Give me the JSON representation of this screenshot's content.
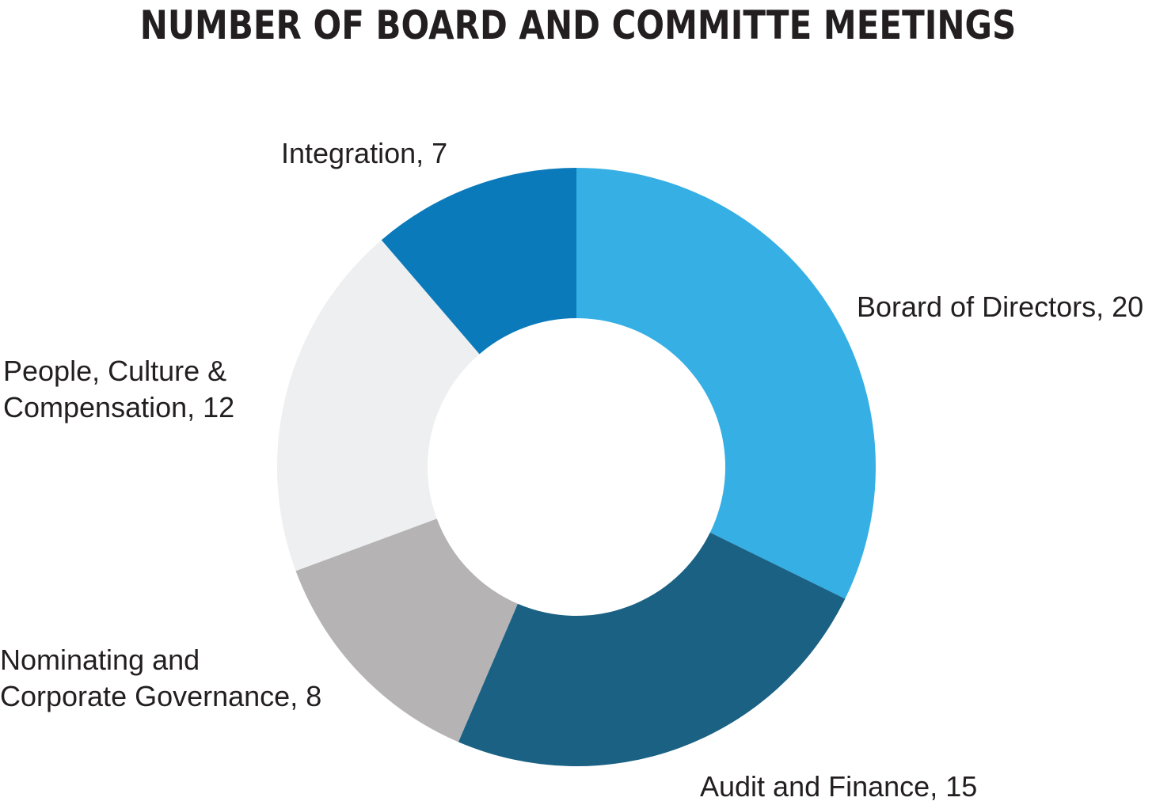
{
  "chart_data": {
    "type": "pie",
    "variant": "donut",
    "title": "NUMBER OF BOARD AND COMMITTE MEETINGS",
    "slices": [
      {
        "label": "Borard of Directors",
        "value": 20,
        "color": "#35afe4",
        "lines": [
          "Borard of Directors, 20"
        ]
      },
      {
        "label": "Audit and Finance",
        "value": 15,
        "color": "#1a6184",
        "lines": [
          "Audit and Finance, 15"
        ]
      },
      {
        "label": "Nominating and Corporate Governance",
        "value": 8,
        "color": "#b6b3b4",
        "lines": [
          "Nominating and",
          "Corporate Governance, 8"
        ]
      },
      {
        "label": "People, Culture & Compensation",
        "value": 12,
        "color": "#eeeff1",
        "lines": [
          "People, Culture &",
          "Compensation, 12"
        ]
      },
      {
        "label": "Integration",
        "value": 7,
        "color": "#0a7abb",
        "lines": [
          "Integration, 7"
        ]
      }
    ],
    "start_angle": "12 o'clock",
    "direction": "clockwise",
    "legend": "none"
  }
}
